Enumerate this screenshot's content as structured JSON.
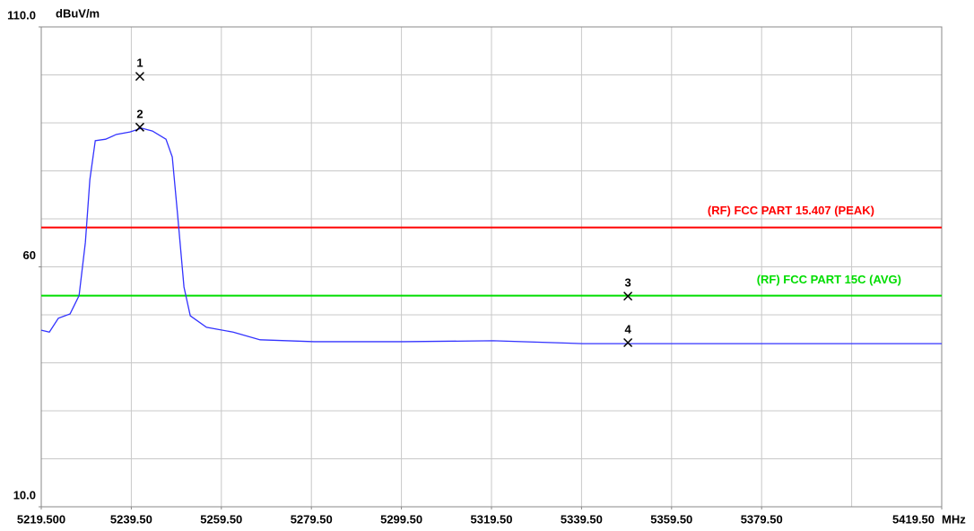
{
  "chart_data": {
    "type": "line",
    "y_unit": "dBuV/m",
    "x_unit": "MHz",
    "xlim": [
      5219.5,
      5419.5
    ],
    "ylim": [
      10,
      110
    ],
    "xticks": [
      {
        "value": 5219.5,
        "label": "5219.500"
      },
      {
        "value": 5239.5,
        "label": "5239.50"
      },
      {
        "value": 5259.5,
        "label": "5259.50"
      },
      {
        "value": 5279.5,
        "label": "5279.50"
      },
      {
        "value": 5299.5,
        "label": "5299.50"
      },
      {
        "value": 5319.5,
        "label": "5319.50"
      },
      {
        "value": 5339.5,
        "label": "5339.50"
      },
      {
        "value": 5359.5,
        "label": "5359.50"
      },
      {
        "value": 5379.5,
        "label": "5379.50"
      },
      {
        "value": 5419.5,
        "label": "5419.50"
      }
    ],
    "yticks": [
      {
        "value": 10,
        "label": "10.0"
      },
      60,
      {
        "value": 110,
        "label": "110.0"
      }
    ],
    "xgrid": [
      5239.5,
      5259.5,
      5279.5,
      5299.5,
      5319.5,
      5339.5,
      5359.5,
      5379.5,
      5399.5
    ],
    "ygrid": [
      20,
      30,
      40,
      50,
      60,
      70,
      80,
      90,
      100
    ],
    "grid": true,
    "series": [
      {
        "color": "#3333ff",
        "x": [
          5219.5,
          5221.3,
          5223.3,
          5225.9,
          5227.9,
          5229.3,
          5230.3,
          5231.5,
          5233.8,
          5236.2,
          5239.2,
          5241.8,
          5244.2,
          5247.2,
          5248.6,
          5249.8,
          5251.2,
          5252.6,
          5256.2,
          5262.1,
          5268.1,
          5280.1,
          5300.0,
          5319.9,
          5339.8,
          5359.7,
          5379.7,
          5419.5
        ],
        "values": [
          46.8,
          46.4,
          49.3,
          50.2,
          54.0,
          65.1,
          78.2,
          86.3,
          86.6,
          87.6,
          88.1,
          88.9,
          88.3,
          86.6,
          82.9,
          70.7,
          55.8,
          49.8,
          47.4,
          46.4,
          44.8,
          44.4,
          44.4,
          44.6,
          44.0,
          44.0,
          44.0,
          44.0
        ]
      }
    ],
    "limits": [
      {
        "name": "(RF) FCC PART 15.407  (PEAK)",
        "color": "#ff0000",
        "value": 68.2
      },
      {
        "name": "(RF) FCC PART 15C (AVG)",
        "color": "#00dd00",
        "value": 54
      }
    ],
    "markers": [
      {
        "label": "1",
        "x": 5241.4,
        "y": 99.7
      },
      {
        "label": "2",
        "x": 5241.4,
        "y": 89.1
      },
      {
        "label": "3",
        "x": 5349.8,
        "y": 53.9
      },
      {
        "label": "4",
        "x": 5349.8,
        "y": 44.2
      }
    ]
  }
}
